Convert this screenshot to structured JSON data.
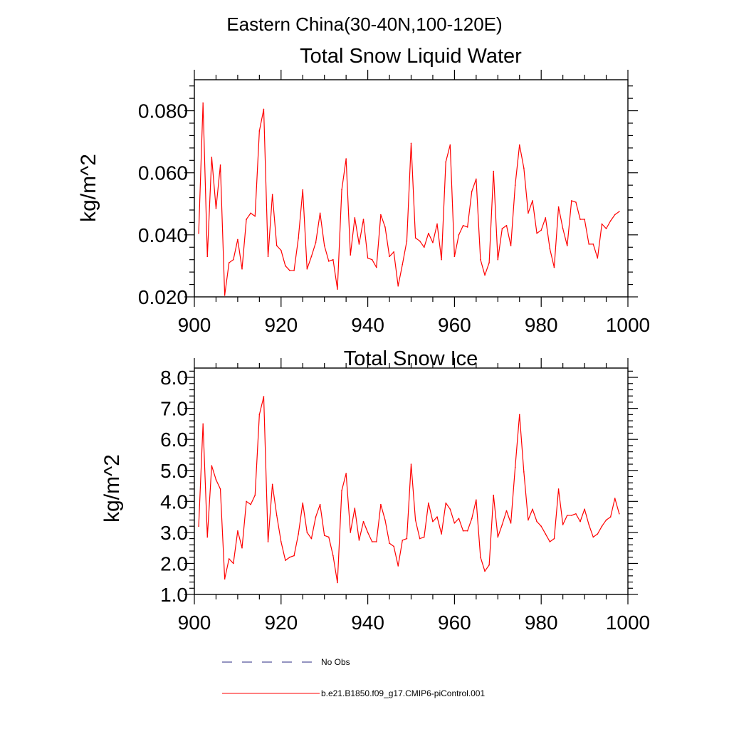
{
  "figure": {
    "supertitle": "Eastern China(30-40N,100-120E)"
  },
  "colors": {
    "model": "#ff0000",
    "obs": "#2a2a80",
    "axis": "#000000",
    "background": "#ffffff"
  },
  "chart_data": [
    {
      "type": "line",
      "title": "Total Snow Liquid Water",
      "xlabel": "",
      "ylabel": "kg/m^2",
      "xlim": [
        900,
        1000
      ],
      "ylim": [
        0.02,
        0.09
      ],
      "xticks": [
        900,
        920,
        940,
        960,
        980,
        1000
      ],
      "xtick_labels": [
        "900",
        "920",
        "940",
        "960",
        "980",
        "1000"
      ],
      "yticks": [
        0.02,
        0.04,
        0.06,
        0.08
      ],
      "ytick_labels": [
        "0.020",
        "0.040",
        "0.060",
        "0.080"
      ],
      "x_minor_step": 5,
      "y_minor_step": 0.004,
      "grid": false,
      "series": [
        {
          "name": "b.e21.B1850.f09_g17.CMIP6-piControl.001",
          "x_start": 901,
          "values": [
            0.0405,
            0.0825,
            0.033,
            0.065,
            0.0485,
            0.0625,
            0.0205,
            0.031,
            0.032,
            0.0385,
            0.029,
            0.045,
            0.047,
            0.046,
            0.0735,
            0.0805,
            0.033,
            0.053,
            0.0365,
            0.035,
            0.03,
            0.0285,
            0.0285,
            0.039,
            0.0545,
            0.029,
            0.033,
            0.0375,
            0.047,
            0.0365,
            0.0315,
            0.032,
            0.0225,
            0.0545,
            0.0645,
            0.0335,
            0.0455,
            0.037,
            0.045,
            0.0325,
            0.032,
            0.0295,
            0.0465,
            0.0425,
            0.033,
            0.0345,
            0.0235,
            0.0305,
            0.038,
            0.0695,
            0.039,
            0.038,
            0.036,
            0.0405,
            0.0375,
            0.0435,
            0.032,
            0.0635,
            0.069,
            0.033,
            0.04,
            0.043,
            0.0425,
            0.054,
            0.058,
            0.032,
            0.027,
            0.031,
            0.0605,
            0.032,
            0.042,
            0.043,
            0.0365,
            0.056,
            0.069,
            0.0615,
            0.047,
            0.051,
            0.0405,
            0.0415,
            0.0455,
            0.0355,
            0.0295,
            0.049,
            0.042,
            0.0365,
            0.051,
            0.0505,
            0.045,
            0.045,
            0.037,
            0.037,
            0.0325,
            0.0435,
            0.042,
            0.0445,
            0.0465,
            0.0475
          ]
        }
      ]
    },
    {
      "type": "line",
      "title": "Total Snow Ice",
      "xlabel": "",
      "ylabel": "kg/m^2",
      "xlim": [
        900,
        1000
      ],
      "ylim": [
        1.0,
        8.3
      ],
      "xticks": [
        900,
        920,
        940,
        960,
        980,
        1000
      ],
      "xtick_labels": [
        "900",
        "920",
        "940",
        "960",
        "980",
        "1000"
      ],
      "yticks": [
        1.0,
        2.0,
        3.0,
        4.0,
        5.0,
        6.0,
        7.0,
        8.0
      ],
      "ytick_labels": [
        "1.0",
        "2.0",
        "3.0",
        "4.0",
        "5.0",
        "6.0",
        "7.0",
        "8.0"
      ],
      "x_minor_step": 5,
      "y_minor_step": 0.2,
      "grid": false,
      "series": [
        {
          "name": "b.e21.B1850.f09_g17.CMIP6-piControl.001",
          "x_start": 901,
          "values": [
            3.2,
            6.5,
            2.85,
            5.15,
            4.7,
            4.4,
            1.5,
            2.15,
            2.0,
            3.05,
            2.5,
            4.0,
            3.9,
            4.2,
            6.8,
            7.38,
            2.7,
            4.55,
            3.55,
            2.7,
            2.1,
            2.2,
            2.25,
            2.95,
            3.95,
            3.0,
            2.8,
            3.5,
            3.9,
            2.9,
            2.85,
            2.25,
            1.38,
            4.35,
            4.9,
            3.0,
            3.78,
            2.75,
            3.35,
            3.0,
            2.7,
            2.7,
            3.9,
            3.4,
            2.65,
            2.55,
            1.92,
            2.75,
            2.8,
            5.2,
            3.4,
            2.8,
            2.85,
            3.95,
            3.35,
            3.5,
            2.95,
            3.95,
            3.75,
            3.3,
            3.45,
            3.05,
            3.05,
            3.45,
            4.05,
            2.2,
            1.75,
            1.95,
            4.2,
            2.85,
            3.25,
            3.7,
            3.3,
            5.1,
            6.8,
            4.95,
            3.4,
            3.75,
            3.35,
            3.2,
            2.95,
            2.7,
            2.8,
            4.4,
            3.25,
            3.55,
            3.55,
            3.6,
            3.35,
            3.75,
            3.25,
            2.85,
            2.95,
            3.2,
            3.4,
            3.5,
            4.1,
            3.6
          ]
        }
      ]
    }
  ],
  "legend": {
    "entries": [
      {
        "label": "No Obs",
        "style": "dashed",
        "color_key": "obs"
      },
      {
        "label": "b.e21.B1850.f09_g17.CMIP6-piControl.001",
        "style": "solid",
        "color_key": "model"
      }
    ]
  }
}
